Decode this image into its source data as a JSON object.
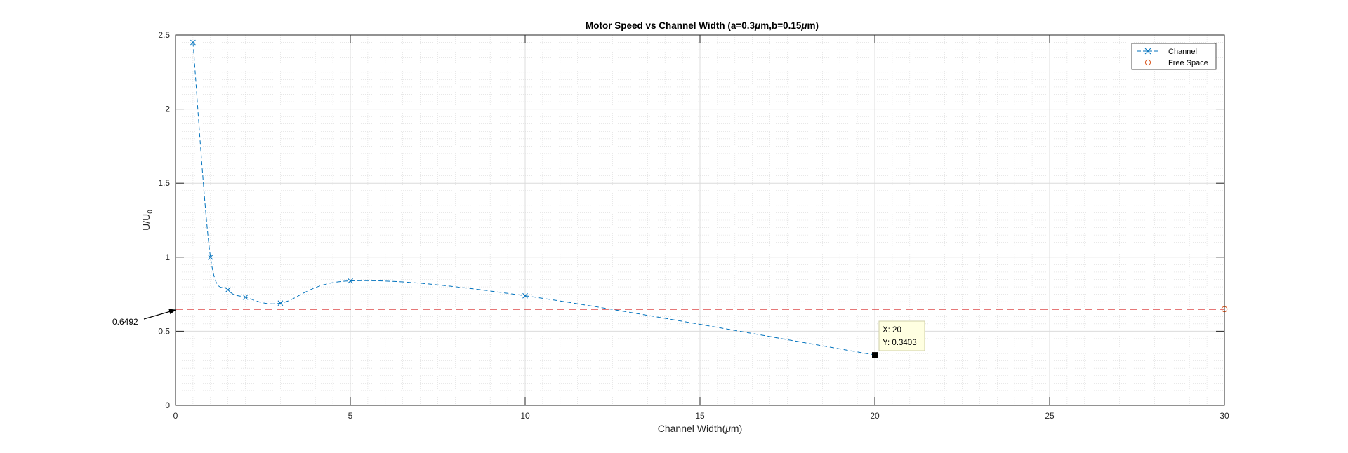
{
  "chart_data": {
    "type": "line",
    "title_parts": [
      "Motor Speed vs Channel Width (a=0.3",
      "μ",
      "m,b=0.15",
      "μ",
      "m)"
    ],
    "xlabel_parts": [
      "Channel Width(",
      "μ",
      "m)"
    ],
    "ylabel_parts": [
      "U/U",
      "0"
    ],
    "xlim": [
      0,
      30
    ],
    "ylim": [
      0,
      2.5
    ],
    "x_ticks": [
      0,
      5,
      10,
      15,
      20,
      25,
      30
    ],
    "x_tick_labels": [
      "0",
      "5",
      "10",
      "15",
      "20",
      "25",
      "30"
    ],
    "y_ticks": [
      0,
      0.5,
      1,
      1.5,
      2,
      2.5
    ],
    "y_tick_labels": [
      "0",
      "0.5",
      "1",
      "1.5",
      "2",
      "2.5"
    ],
    "grid": true,
    "minor_grid": true,
    "legend_position": "top-right",
    "series": [
      {
        "name": "Channel",
        "color": "#0072BD",
        "line_style": "dashed",
        "marker": "x",
        "x": [
          0.5,
          1,
          1.5,
          2,
          3,
          5,
          10,
          20
        ],
        "y": [
          2.45,
          1.0,
          0.78,
          0.73,
          0.69,
          0.84,
          0.74,
          0.3403
        ]
      },
      {
        "name": "Free Space",
        "color": "#D95319",
        "line_style": "none",
        "marker": "o",
        "x": [
          30
        ],
        "y": [
          0.6492
        ]
      }
    ],
    "reference_line": {
      "y": 0.6492,
      "color": "#D62728",
      "style": "dashed"
    },
    "annotations": [
      {
        "text": "0.6492",
        "arrow_to": [
          0,
          0.6492
        ]
      }
    ],
    "datatip": {
      "x": 20,
      "y": 0.3403,
      "label_x": "X: 20",
      "label_y": "Y: 0.3403"
    }
  }
}
